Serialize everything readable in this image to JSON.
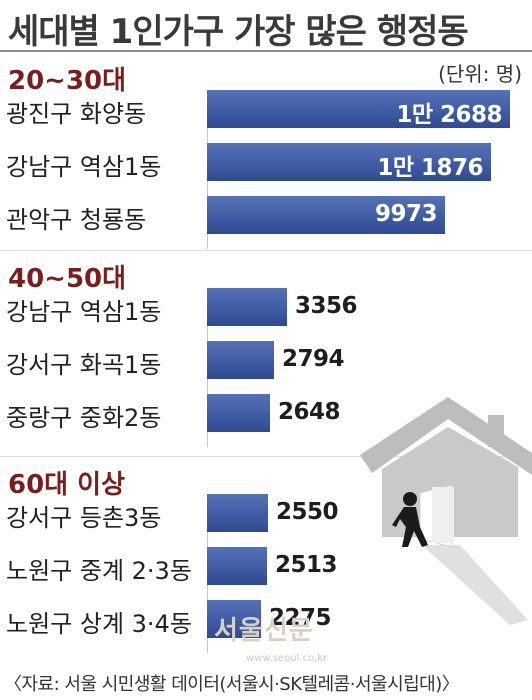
{
  "title": "세대별 1인가구 가장 많은 행정동",
  "unit": "(단위: 명)",
  "source": "〈자료: 서울 시민생활 데이터(서울시·SK텔레콤·서울시립대)〉",
  "logo": {
    "text": "서울신문",
    "url": "www.seoul.co.kr"
  },
  "colors": {
    "bar": "#3e5aa2",
    "section_title": "#7a1d1d",
    "illustration": "#bfbfbf"
  },
  "chart_data": {
    "type": "bar",
    "orientation": "horizontal",
    "title": "세대별 1인가구 가장 많은 행정동",
    "unit": "명",
    "groups": [
      {
        "name": "20~30대",
        "bars": [
          {
            "label": "광진구 화양동",
            "value": 12688,
            "display": "1만 2688"
          },
          {
            "label": "강남구 역삼1동",
            "value": 11876,
            "display": "1만 1876"
          },
          {
            "label": "관악구 청룡동",
            "value": 9973,
            "display": "9973"
          }
        ]
      },
      {
        "name": "40~50대",
        "bars": [
          {
            "label": "강남구 역삼1동",
            "value": 3356,
            "display": "3356"
          },
          {
            "label": "강서구 화곡1동",
            "value": 2794,
            "display": "2794"
          },
          {
            "label": "중랑구 중화2동",
            "value": 2648,
            "display": "2648"
          }
        ]
      },
      {
        "name": "60대 이상",
        "bars": [
          {
            "label": "강서구 등촌3동",
            "value": 2550,
            "display": "2550"
          },
          {
            "label": "노원구 중계 2·3동",
            "value": 2513,
            "display": "2513"
          },
          {
            "label": "노원구 상계 3·4동",
            "value": 2275,
            "display": "2275"
          }
        ]
      }
    ]
  }
}
